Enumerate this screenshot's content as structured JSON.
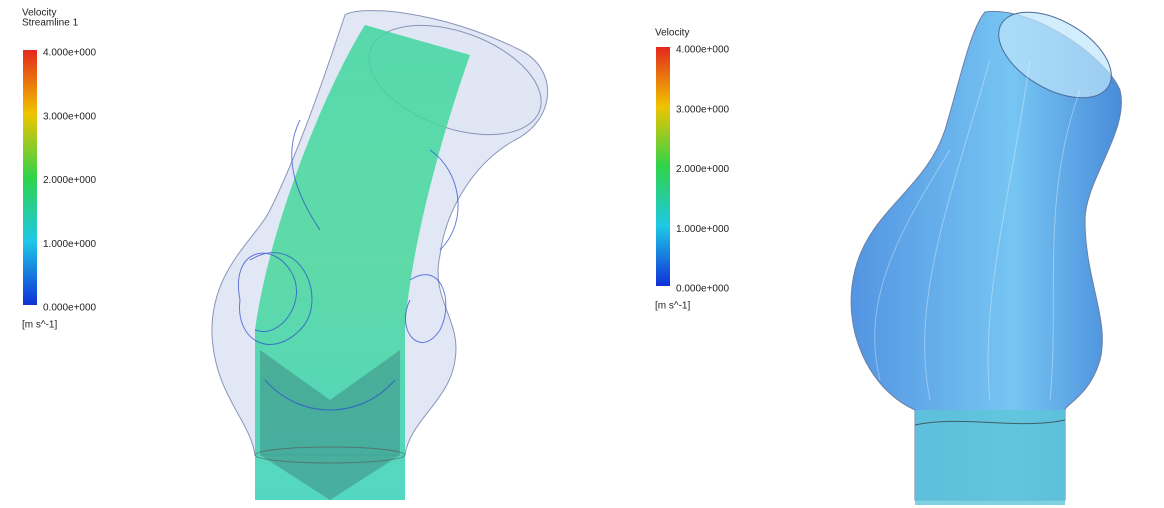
{
  "legends": [
    {
      "title": "Velocity",
      "subtitle": "Streamline 1",
      "labels": [
        "4.000e+000",
        "3.000e+000",
        "2.000e+000",
        "1.000e+000",
        "0.000e+000"
      ],
      "unit": "[m s^-1]"
    },
    {
      "title": "Velocity",
      "labels": [
        "4.000e+000",
        "3.000e+000",
        "2.000e+000",
        "1.000e+000",
        "0.000e+000"
      ],
      "unit": "[m s^-1]"
    }
  ]
}
